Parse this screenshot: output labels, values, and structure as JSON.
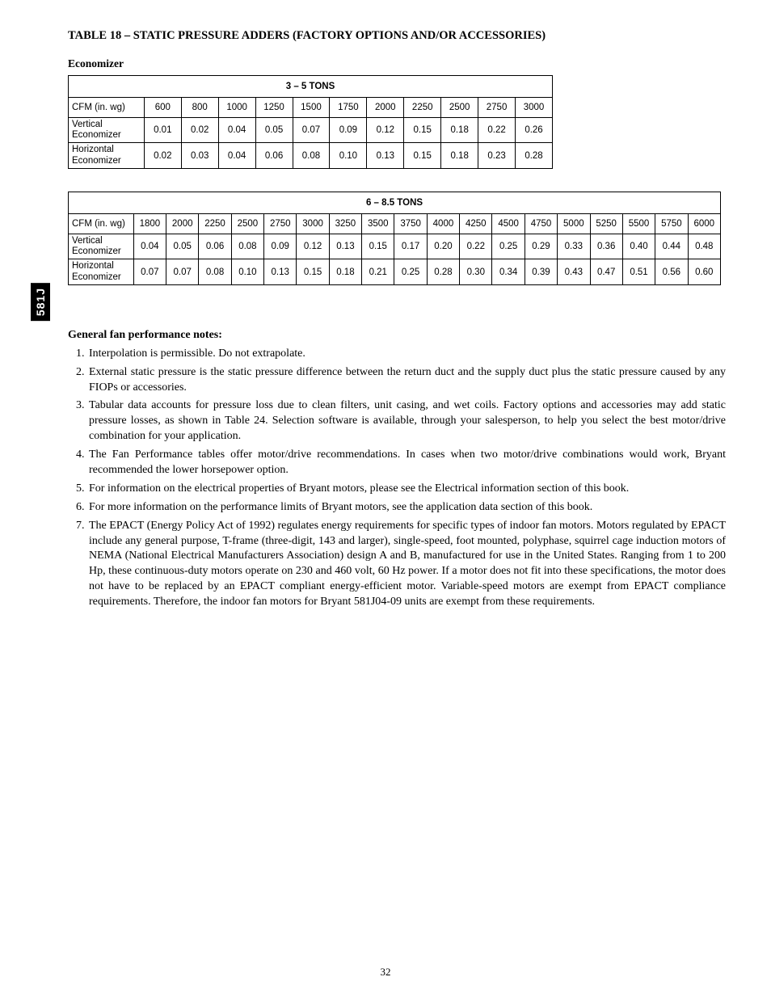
{
  "side_tab": "581J",
  "title": "TABLE 18 – STATIC PRESSURE ADDERS (FACTORY OPTIONS AND/OR ACCESSORIES)",
  "subhead": "Economizer",
  "cfm_label": "CFM (in. wg)",
  "row_labels": {
    "vertical": [
      "Vertical",
      "Economizer"
    ],
    "horizontal": [
      "Horizontal",
      "Economizer"
    ]
  },
  "table1": {
    "header": "3 – 5 TONS",
    "cfm": [
      "600",
      "800",
      "1000",
      "1250",
      "1500",
      "1750",
      "2000",
      "2250",
      "2500",
      "2750",
      "3000"
    ],
    "vertical": [
      "0.01",
      "0.02",
      "0.04",
      "0.05",
      "0.07",
      "0.09",
      "0.12",
      "0.15",
      "0.18",
      "0.22",
      "0.26"
    ],
    "horizontal": [
      "0.02",
      "0.03",
      "0.04",
      "0.06",
      "0.08",
      "0.10",
      "0.13",
      "0.15",
      "0.18",
      "0.23",
      "0.28"
    ],
    "label_col_width": 94,
    "data_col_width": 46
  },
  "table2": {
    "header": "6 – 8.5 TONS",
    "cfm": [
      "1800",
      "2000",
      "2250",
      "2500",
      "2750",
      "3000",
      "3250",
      "3500",
      "3750",
      "4000",
      "4250",
      "4500",
      "4750",
      "5000",
      "5250",
      "5500",
      "5750",
      "6000"
    ],
    "vertical": [
      "0.04",
      "0.05",
      "0.06",
      "0.08",
      "0.09",
      "0.12",
      "0.13",
      "0.15",
      "0.17",
      "0.20",
      "0.22",
      "0.25",
      "0.29",
      "0.33",
      "0.36",
      "0.40",
      "0.44",
      "0.48"
    ],
    "horizontal": [
      "0.07",
      "0.07",
      "0.08",
      "0.10",
      "0.13",
      "0.15",
      "0.18",
      "0.21",
      "0.25",
      "0.28",
      "0.30",
      "0.34",
      "0.39",
      "0.43",
      "0.47",
      "0.51",
      "0.56",
      "0.60"
    ],
    "label_col_width": 80,
    "data_col_width": 40
  },
  "notes_title": "General fan performance notes:",
  "notes": [
    "Interpolation is permissible. Do not extrapolate.",
    "External static pressure is the static pressure difference between the return duct and the supply duct plus the static pressure caused by any FIOPs or accessories.",
    "Tabular data accounts for pressure loss due to clean filters, unit casing, and wet coils. Factory options and accessories may add static pressure losses, as shown in Table 24. Selection software is available, through your salesperson, to help you select the best motor/drive combination for your application.",
    "The Fan Performance tables offer motor/drive recommendations. In cases when two motor/drive combinations would work, Bryant recommended the lower horsepower option.",
    "For information on the electrical properties of Bryant motors, please see the Electrical information section of this book.",
    "For more information on the performance limits of Bryant motors, see the application data section of this book.",
    "The EPACT (Energy Policy Act of 1992) regulates energy requirements for specific types of indoor fan motors. Motors regulated by EPACT include any general purpose, T-frame (three-digit, 143 and larger), single-speed, foot mounted, polyphase, squirrel cage induction motors of NEMA (National Electrical Manufacturers Association) design A and B, manufactured for use in the United States. Ranging from 1 to 200 Hp, these continuous-duty motors operate on 230 and 460 volt, 60 Hz power. If a motor does not fit into these specifications, the motor does not have to be replaced by an EPACT compliant energy-efficient motor. Variable-speed motors are exempt from EPACT compliance requirements. Therefore, the indoor fan motors for Bryant 581J04-09 units are exempt from these requirements."
  ],
  "page_number": "32"
}
